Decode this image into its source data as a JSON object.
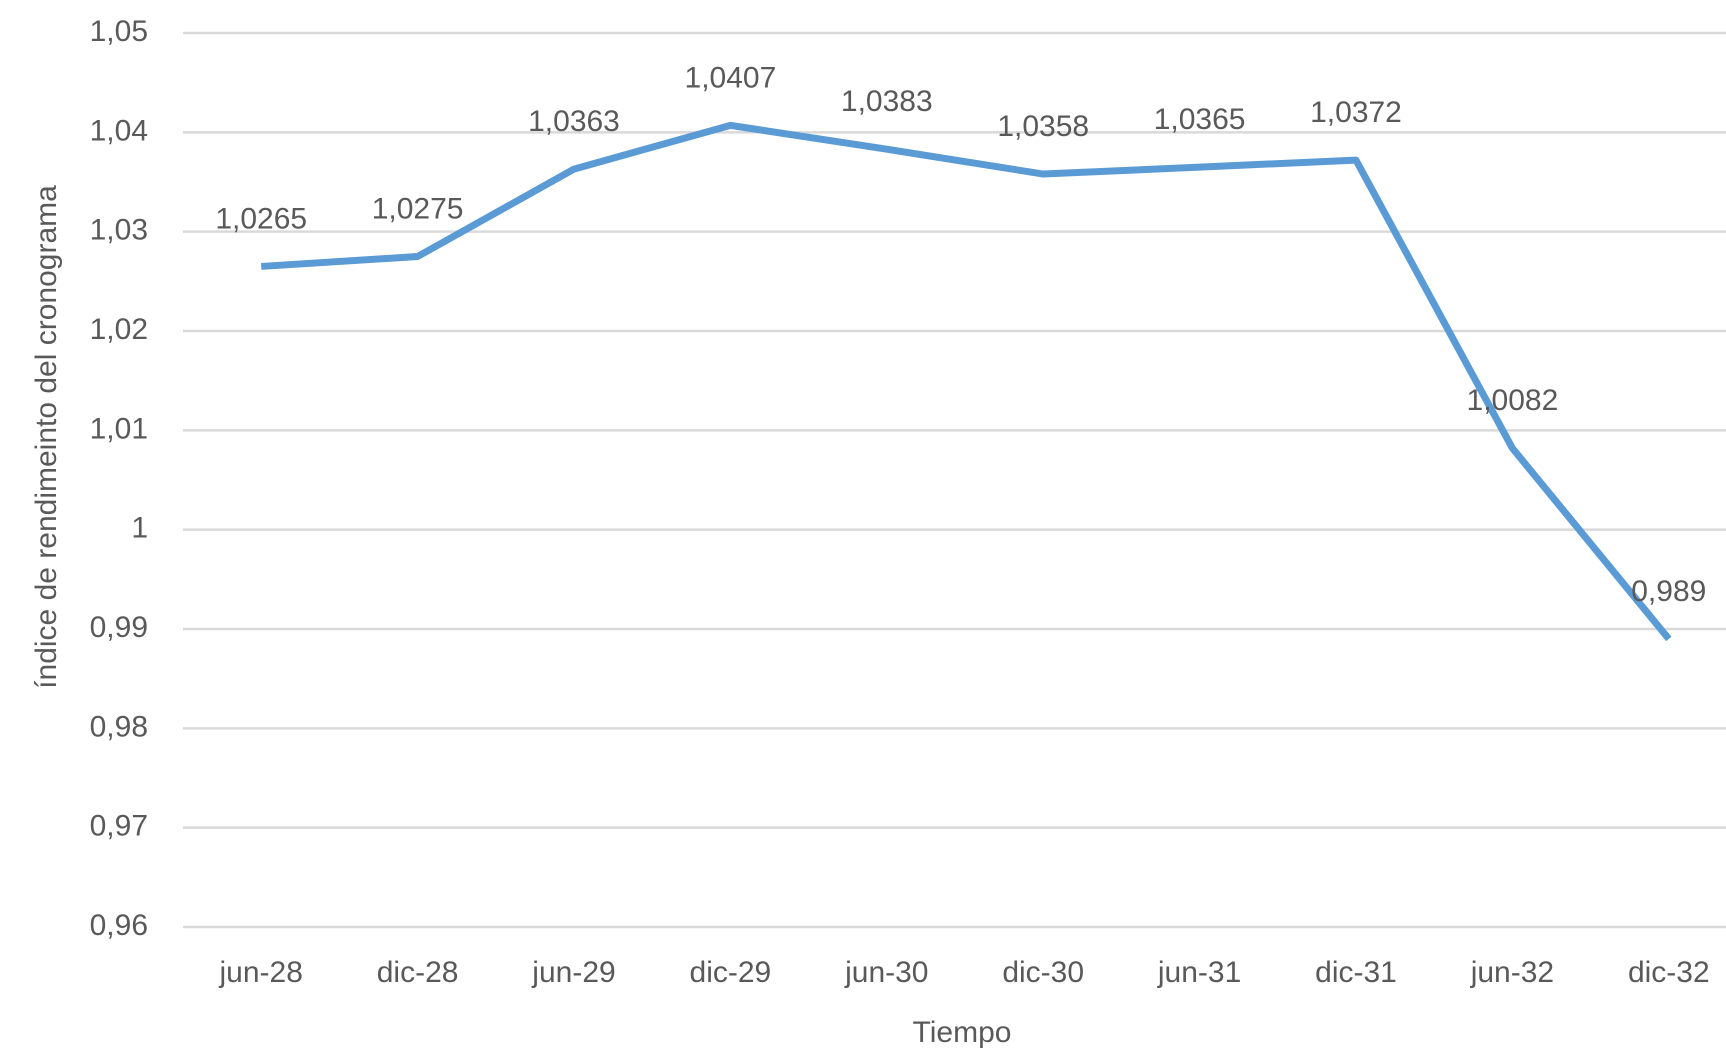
{
  "chart_data": {
    "type": "line",
    "x_label": "Tiempo",
    "y_label": "índice de rendimeinto del cronograma",
    "categories": [
      "jun-28",
      "dic-28",
      "jun-29",
      "dic-29",
      "jun-30",
      "dic-30",
      "jun-31",
      "dic-31",
      "jun-32",
      "dic-32"
    ],
    "values": [
      1.0265,
      1.0275,
      1.0363,
      1.0407,
      1.0383,
      1.0358,
      1.0365,
      1.0372,
      1.0082,
      0.989
    ],
    "value_labels": [
      "1,0265",
      "1,0275",
      "1,0363",
      "1,0407",
      "1,0383",
      "1,0358",
      "1,0365",
      "1,0372",
      "1,0082",
      "0,989"
    ],
    "color": "#5b9bd5",
    "ylim": [
      0.96,
      1.05
    ],
    "yticks": [
      {
        "value": 0.96,
        "label": "0,96"
      },
      {
        "value": 0.97,
        "label": "0,97"
      },
      {
        "value": 0.98,
        "label": "0,98"
      },
      {
        "value": 0.99,
        "label": "0,99"
      },
      1,
      {
        "value": 1.01,
        "label": "1,01"
      },
      {
        "value": 1.02,
        "label": "1,02"
      },
      {
        "value": 1.03,
        "label": "1,03"
      },
      {
        "value": 1.04,
        "label": "1,04"
      },
      {
        "value": 1.05,
        "label": "1,05"
      }
    ],
    "grid": true
  }
}
